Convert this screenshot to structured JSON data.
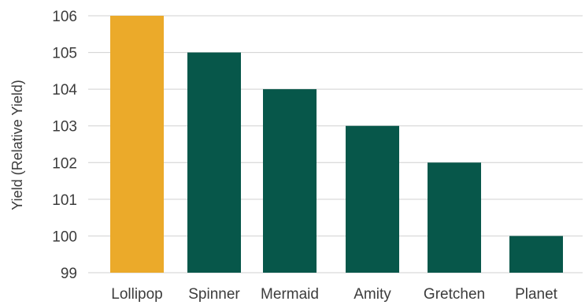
{
  "chart_data": {
    "type": "bar",
    "categories": [
      "Lollipop",
      "Spinner",
      "Mermaid",
      "Amity",
      "Gretchen",
      "Planet"
    ],
    "values": [
      106,
      105,
      104,
      103,
      102,
      100
    ],
    "ylabel": "Yield (Relative Yield)",
    "xlabel": "",
    "ylim": [
      99,
      106
    ],
    "yticks": [
      99,
      100,
      101,
      102,
      103,
      104,
      105,
      106
    ],
    "grid": true,
    "highlight_category": "Lollipop",
    "colors": {
      "highlight": "#EBAA2A",
      "bar": "#07574A",
      "grid": "#D0D0D0",
      "text": "#3C3C3C"
    }
  }
}
